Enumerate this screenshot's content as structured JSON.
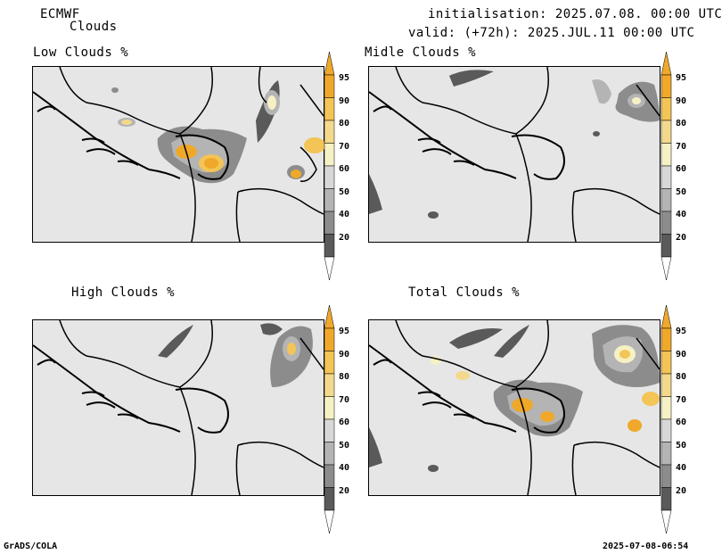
{
  "header": {
    "model": "ECMWF",
    "product": "Clouds",
    "init": "initialisation: 2025.07.08. 00:00 UTC",
    "valid": "valid: (+72h): 2025.JUL.11 00:00 UTC"
  },
  "panels": [
    {
      "title": "Low Clouds %"
    },
    {
      "title": "Midle Clouds %"
    },
    {
      "title": "High Clouds %"
    },
    {
      "title": "Total Clouds %"
    }
  ],
  "colorbar": {
    "labels": [
      "95",
      "90",
      "80",
      "70",
      "60",
      "50",
      "40",
      "20"
    ],
    "colors": [
      "#efa82a",
      "#f3c456",
      "#f3d98c",
      "#f5f1c4",
      "#d8d8d8",
      "#b4b4b4",
      "#8c8c8c",
      "#5a5a5a"
    ]
  },
  "footer": {
    "left": "GrADS/COLA",
    "right": "2025-07-08-06:54"
  }
}
